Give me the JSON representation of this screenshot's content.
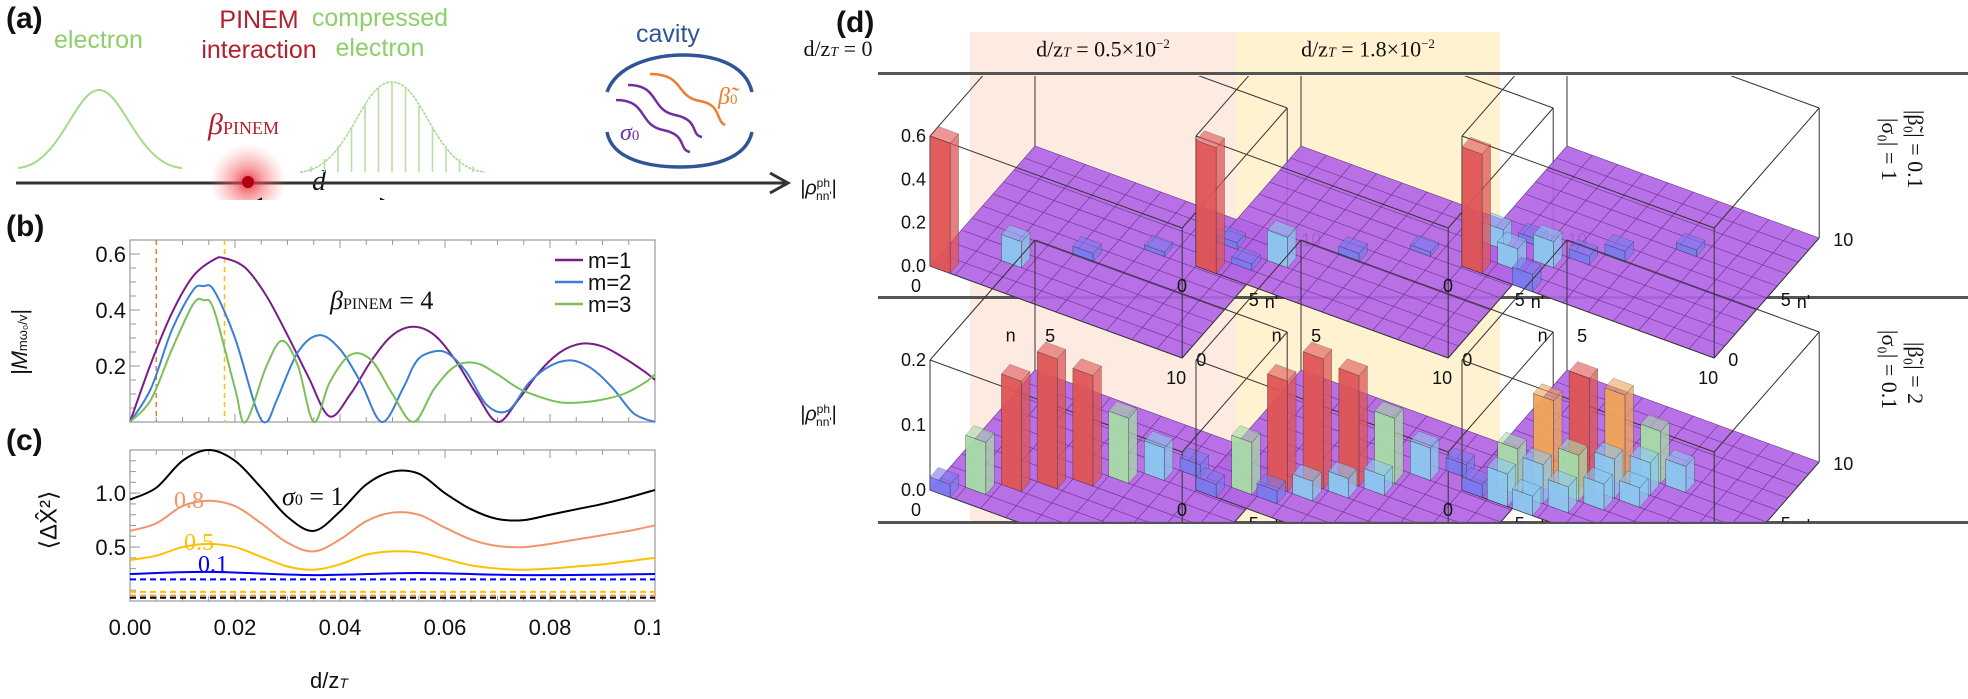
{
  "panel_a": {
    "label": "(a)",
    "electron_label": "electron",
    "interaction_label_1": "PINEM",
    "interaction_label_2": "interaction",
    "beta_label": "β",
    "beta_sub": "PINEM",
    "compressed_label_1": "compressed",
    "compressed_label_2": "electron",
    "cavity_label": "cavity",
    "sigma_label": "σ",
    "sigma_sub": "0",
    "beta0_label": "β̃",
    "beta0_sub": "0",
    "distance_label": "d",
    "colors": {
      "electron": "#8dcf6a",
      "pinem": "#b3202b",
      "cavity": "#2f5597",
      "sigma": "#7030a0",
      "beta0": "#ed7d31"
    }
  },
  "chart_data": [
    {
      "id": "b",
      "panel_label": "(b)",
      "type": "line",
      "title": "",
      "annotation": "β_PINEM = 4",
      "annotation_main": "β",
      "annotation_sub": "PINEM",
      "annotation_tail": " = 4",
      "xlabel": "",
      "ylabel": "|M_{mω0/v}|",
      "ylabel_main": "|M",
      "ylabel_sub": "mω₀/v",
      "ylabel_end": "|",
      "xlim": [
        0,
        0.1
      ],
      "ylim": [
        0,
        0.65
      ],
      "yticks": [
        0.2,
        0.4,
        0.6
      ],
      "ytick_labels": [
        "0.2",
        "0.4",
        "0.6"
      ],
      "legend_position": "top-right",
      "vlines": [
        {
          "x": 0.005,
          "color": "#ed7d31"
        },
        {
          "x": 0.018,
          "color": "#ffc000"
        }
      ],
      "series": [
        {
          "name": "m=1",
          "color": "#7b1a8a",
          "x": [
            0,
            0.004,
            0.008,
            0.012,
            0.016,
            0.018,
            0.022,
            0.026,
            0.03,
            0.034,
            0.038,
            0.042,
            0.046,
            0.05,
            0.054,
            0.058,
            0.062,
            0.066,
            0.07,
            0.074,
            0.078,
            0.082,
            0.086,
            0.09,
            0.094,
            0.098,
            0.1
          ],
          "values": [
            0,
            0.21,
            0.39,
            0.52,
            0.58,
            0.585,
            0.55,
            0.45,
            0.31,
            0.16,
            0.02,
            0.1,
            0.22,
            0.31,
            0.34,
            0.31,
            0.22,
            0.1,
            0.0,
            0.08,
            0.18,
            0.25,
            0.28,
            0.27,
            0.23,
            0.18,
            0.15
          ]
        },
        {
          "name": "m=2",
          "color": "#3a7ed6",
          "x": [
            0,
            0.004,
            0.008,
            0.012,
            0.014,
            0.016,
            0.02,
            0.024,
            0.026,
            0.028,
            0.032,
            0.036,
            0.04,
            0.044,
            0.048,
            0.052,
            0.054,
            0.056,
            0.06,
            0.064,
            0.068,
            0.072,
            0.076,
            0.08,
            0.084,
            0.088,
            0.092,
            0.096,
            0.1
          ],
          "values": [
            0,
            0.12,
            0.33,
            0.47,
            0.485,
            0.47,
            0.3,
            0.05,
            0.0,
            0.08,
            0.25,
            0.31,
            0.26,
            0.14,
            0.0,
            0.12,
            0.2,
            0.24,
            0.25,
            0.18,
            0.06,
            0.04,
            0.14,
            0.2,
            0.22,
            0.19,
            0.12,
            0.03,
            0.0
          ]
        },
        {
          "name": "m=3",
          "color": "#7bbf5a",
          "x": [
            0,
            0.004,
            0.008,
            0.012,
            0.014,
            0.016,
            0.02,
            0.022,
            0.026,
            0.029,
            0.032,
            0.035,
            0.038,
            0.042,
            0.046,
            0.05,
            0.054,
            0.058,
            0.062,
            0.066,
            0.07,
            0.074,
            0.078,
            0.082,
            0.086,
            0.09,
            0.094,
            0.098,
            0.1
          ],
          "values": [
            0,
            0.08,
            0.26,
            0.42,
            0.435,
            0.4,
            0.12,
            0.0,
            0.2,
            0.29,
            0.2,
            0.0,
            0.14,
            0.24,
            0.22,
            0.1,
            0.0,
            0.12,
            0.2,
            0.21,
            0.17,
            0.12,
            0.09,
            0.07,
            0.07,
            0.08,
            0.1,
            0.14,
            0.17
          ]
        }
      ]
    },
    {
      "id": "c",
      "panel_label": "(c)",
      "type": "line",
      "title": "",
      "xlabel": "d/z_T",
      "xlabel_main": "d/z",
      "xlabel_sub": "T",
      "ylabel": "⟨ΔX̂²⟩",
      "xlim": [
        0,
        0.1
      ],
      "ylim": [
        0,
        1.4
      ],
      "xticks": [
        0,
        0.02,
        0.04,
        0.06,
        0.08,
        0.1
      ],
      "xtick_labels": [
        "0.00",
        "0.02",
        "0.04",
        "0.06",
        "0.08",
        "0.10"
      ],
      "yticks": [
        0.5,
        1.0
      ],
      "ytick_labels": [
        "0.5",
        "1.0"
      ],
      "annotations": [
        {
          "text": "σ₀ = 1",
          "main": "σ",
          "sub": "0",
          "tail": " = 1",
          "color": "#111111"
        },
        {
          "text": "0.8",
          "color": "#f0956a"
        },
        {
          "text": "0.5",
          "color": "#ffc000"
        },
        {
          "text": "0.1",
          "color": "#0000ff"
        }
      ],
      "series": [
        {
          "name": "σ0=1",
          "color": "#000000",
          "style": "solid",
          "x": [
            0,
            0.005,
            0.01,
            0.015,
            0.02,
            0.025,
            0.03,
            0.035,
            0.04,
            0.045,
            0.05,
            0.055,
            0.06,
            0.065,
            0.07,
            0.075,
            0.08,
            0.085,
            0.09,
            0.095,
            0.1
          ],
          "values": [
            0.94,
            1.05,
            1.3,
            1.4,
            1.3,
            1.05,
            0.78,
            0.65,
            0.83,
            1.08,
            1.2,
            1.18,
            1.0,
            0.85,
            0.76,
            0.75,
            0.8,
            0.85,
            0.9,
            0.96,
            1.03
          ]
        },
        {
          "name": "σ0=0.8",
          "color": "#f0956a",
          "style": "solid",
          "x": [
            0,
            0.005,
            0.01,
            0.015,
            0.02,
            0.025,
            0.03,
            0.035,
            0.04,
            0.045,
            0.05,
            0.055,
            0.06,
            0.065,
            0.07,
            0.075,
            0.08,
            0.085,
            0.09,
            0.095,
            0.1
          ],
          "values": [
            0.65,
            0.72,
            0.88,
            0.93,
            0.88,
            0.72,
            0.54,
            0.46,
            0.57,
            0.74,
            0.82,
            0.8,
            0.68,
            0.57,
            0.51,
            0.5,
            0.53,
            0.57,
            0.61,
            0.65,
            0.7
          ]
        },
        {
          "name": "σ0=0.5",
          "color": "#ffc000",
          "style": "solid",
          "x": [
            0,
            0.005,
            0.01,
            0.015,
            0.02,
            0.025,
            0.03,
            0.035,
            0.04,
            0.045,
            0.05,
            0.055,
            0.06,
            0.065,
            0.07,
            0.075,
            0.08,
            0.085,
            0.09,
            0.095,
            0.1
          ],
          "values": [
            0.38,
            0.42,
            0.5,
            0.53,
            0.5,
            0.41,
            0.32,
            0.29,
            0.34,
            0.43,
            0.46,
            0.45,
            0.39,
            0.33,
            0.3,
            0.29,
            0.3,
            0.32,
            0.34,
            0.37,
            0.4
          ]
        },
        {
          "name": "σ0=0.1",
          "color": "#0000ff",
          "style": "solid",
          "x": [
            0,
            0.015,
            0.035,
            0.055,
            0.075,
            0.1
          ],
          "values": [
            0.25,
            0.27,
            0.24,
            0.26,
            0.24,
            0.25
          ]
        },
        {
          "name": "σ0=0.1 ref",
          "color": "#0000ff",
          "style": "dashed",
          "x": [
            0,
            0.1
          ],
          "values": [
            0.2,
            0.2
          ]
        },
        {
          "name": "σ0=0.5 ref",
          "color": "#ffc000",
          "style": "dashed",
          "x": [
            0,
            0.1
          ],
          "values": [
            0.085,
            0.085
          ]
        },
        {
          "name": "σ0=0.8 ref",
          "color": "#f0956a",
          "style": "dashed",
          "x": [
            0,
            0.1
          ],
          "values": [
            0.05,
            0.05
          ]
        },
        {
          "name": "σ0=1 ref",
          "color": "#000000",
          "style": "dashed",
          "x": [
            0,
            0.1
          ],
          "values": [
            0.03,
            0.03
          ]
        }
      ]
    },
    {
      "id": "d",
      "panel_label": "(d)",
      "type": "bar",
      "subtype": "3d-bar-grid",
      "zlabel_main": "|ρ",
      "zlabel_sup": "ph",
      "zlabel_sub": "nn'",
      "zlabel_end": "|",
      "xlabel": "n",
      "ylabel": "n'",
      "axis_ticks": [
        "0",
        "5",
        "10"
      ],
      "columns": [
        {
          "label_main": "d/z",
          "label_sub": "T",
          "label_tail": " = 0",
          "background": "#ffffff"
        },
        {
          "label_main": "d/z",
          "label_sub": "T",
          "label_tail": " = 0.5×10",
          "label_sup": "−2",
          "background": "#fdebe1"
        },
        {
          "label_main": "d/z",
          "label_sub": "T",
          "label_tail": " = 1.8×10",
          "label_sup": "−2",
          "background": "#fff2d0"
        }
      ],
      "rows": [
        {
          "beta0_label": "|β̃₀| = 0.1",
          "sigma_label": "|σ₀| = 1",
          "zticks": [
            "0.0",
            "0.2",
            "0.4",
            "0.6"
          ],
          "zmax": 0.6,
          "panels": [
            {
              "bars": [
                {
                  "n": 0,
                  "np": 0,
                  "v": 0.6
                },
                {
                  "n": 2,
                  "np": 2,
                  "v": 0.12
                },
                {
                  "n": 4,
                  "np": 4,
                  "v": 0.04
                },
                {
                  "n": 6,
                  "np": 6,
                  "v": 0.02
                }
              ]
            },
            {
              "bars": [
                {
                  "n": 0,
                  "np": 0,
                  "v": 0.58
                },
                {
                  "n": 2,
                  "np": 2,
                  "v": 0.14
                },
                {
                  "n": 1,
                  "np": 1,
                  "v": 0.03
                },
                {
                  "n": 0,
                  "np": 2,
                  "v": 0.03
                },
                {
                  "n": 4,
                  "np": 4,
                  "v": 0.04
                },
                {
                  "n": 6,
                  "np": 6,
                  "v": 0.02
                }
              ]
            },
            {
              "bars": [
                {
                  "n": 0,
                  "np": 0,
                  "v": 0.55
                },
                {
                  "n": 1,
                  "np": 1,
                  "v": 0.1
                },
                {
                  "n": 2,
                  "np": 2,
                  "v": 0.12
                },
                {
                  "n": 0,
                  "np": 2,
                  "v": 0.09
                },
                {
                  "n": 2,
                  "np": 0,
                  "v": 0.08
                },
                {
                  "n": 3,
                  "np": 3,
                  "v": 0.04
                },
                {
                  "n": 4,
                  "np": 4,
                  "v": 0.05
                },
                {
                  "n": 1,
                  "np": 3,
                  "v": 0.03
                },
                {
                  "n": 6,
                  "np": 6,
                  "v": 0.03
                }
              ]
            }
          ]
        },
        {
          "beta0_label": "|β̃₀| = 2",
          "sigma_label": "|σ₀| = 0.1",
          "zticks": [
            "0.0",
            "0.1",
            "0.2"
          ],
          "zmax": 0.2,
          "panels": [
            {
              "bars": [
                {
                  "n": 0,
                  "np": 0,
                  "v": 0.02
                },
                {
                  "n": 1,
                  "np": 1,
                  "v": 0.08
                },
                {
                  "n": 2,
                  "np": 2,
                  "v": 0.17
                },
                {
                  "n": 3,
                  "np": 3,
                  "v": 0.2
                },
                {
                  "n": 4,
                  "np": 4,
                  "v": 0.17
                },
                {
                  "n": 5,
                  "np": 5,
                  "v": 0.1
                },
                {
                  "n": 6,
                  "np": 6,
                  "v": 0.05
                },
                {
                  "n": 7,
                  "np": 7,
                  "v": 0.02
                }
              ]
            },
            {
              "bars": [
                {
                  "n": 0,
                  "np": 0,
                  "v": 0.02
                },
                {
                  "n": 1,
                  "np": 1,
                  "v": 0.08
                },
                {
                  "n": 2,
                  "np": 2,
                  "v": 0.17
                },
                {
                  "n": 3,
                  "np": 3,
                  "v": 0.2
                },
                {
                  "n": 4,
                  "np": 4,
                  "v": 0.17
                },
                {
                  "n": 5,
                  "np": 5,
                  "v": 0.1
                },
                {
                  "n": 6,
                  "np": 6,
                  "v": 0.05
                },
                {
                  "n": 7,
                  "np": 7,
                  "v": 0.02
                },
                {
                  "n": 2,
                  "np": 1,
                  "v": 0.02
                },
                {
                  "n": 3,
                  "np": 2,
                  "v": 0.03
                },
                {
                  "n": 4,
                  "np": 3,
                  "v": 0.03
                },
                {
                  "n": 5,
                  "np": 4,
                  "v": 0.03
                }
              ]
            },
            {
              "bars": [
                {
                  "n": 0,
                  "np": 0,
                  "v": 0.02
                },
                {
                  "n": 1,
                  "np": 1,
                  "v": 0.07
                },
                {
                  "n": 2,
                  "np": 2,
                  "v": 0.14
                },
                {
                  "n": 3,
                  "np": 3,
                  "v": 0.17
                },
                {
                  "n": 4,
                  "np": 4,
                  "v": 0.14
                },
                {
                  "n": 5,
                  "np": 5,
                  "v": 0.08
                },
                {
                  "n": 1,
                  "np": 0,
                  "v": 0.05
                },
                {
                  "n": 2,
                  "np": 1,
                  "v": 0.06
                },
                {
                  "n": 3,
                  "np": 2,
                  "v": 0.07
                },
                {
                  "n": 4,
                  "np": 3,
                  "v": 0.06
                },
                {
                  "n": 5,
                  "np": 4,
                  "v": 0.05
                },
                {
                  "n": 2,
                  "np": 0,
                  "v": 0.03
                },
                {
                  "n": 3,
                  "np": 1,
                  "v": 0.04
                },
                {
                  "n": 4,
                  "np": 2,
                  "v": 0.04
                },
                {
                  "n": 5,
                  "np": 3,
                  "v": 0.03
                },
                {
                  "n": 6,
                  "np": 5,
                  "v": 0.04
                }
              ]
            }
          ]
        }
      ]
    }
  ]
}
